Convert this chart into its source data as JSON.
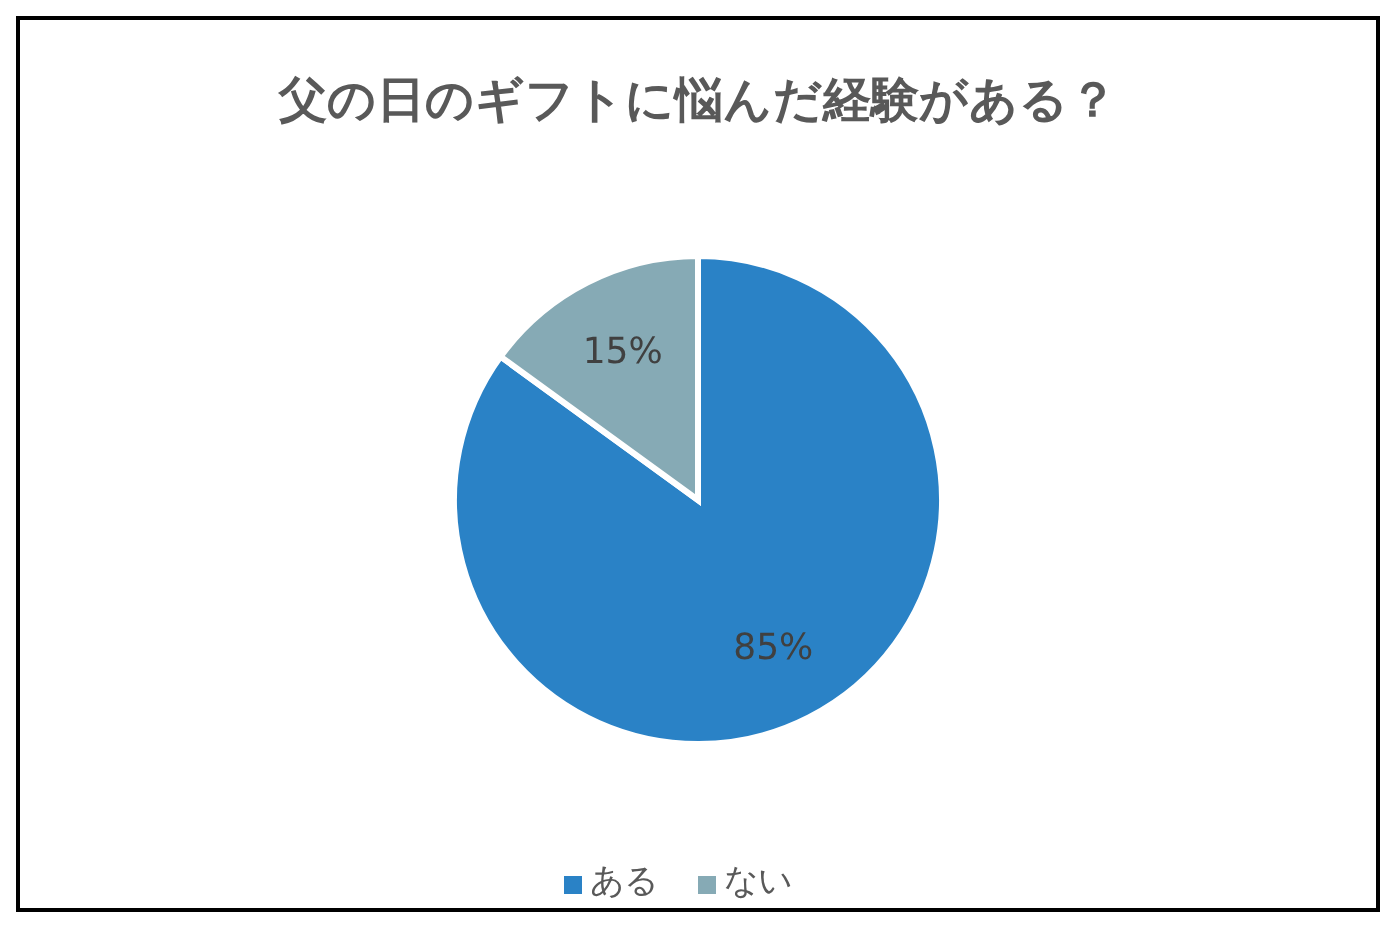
{
  "chart_data": {
    "type": "pie",
    "title": "父の日のギフトに悩んだ経験がある？",
    "categories": [
      "ある",
      "ない"
    ],
    "values": [
      85,
      15
    ],
    "colors": [
      "#2a82c6",
      "#86aab5"
    ],
    "value_labels": [
      "85%",
      "15%"
    ],
    "legend": "bottom"
  }
}
